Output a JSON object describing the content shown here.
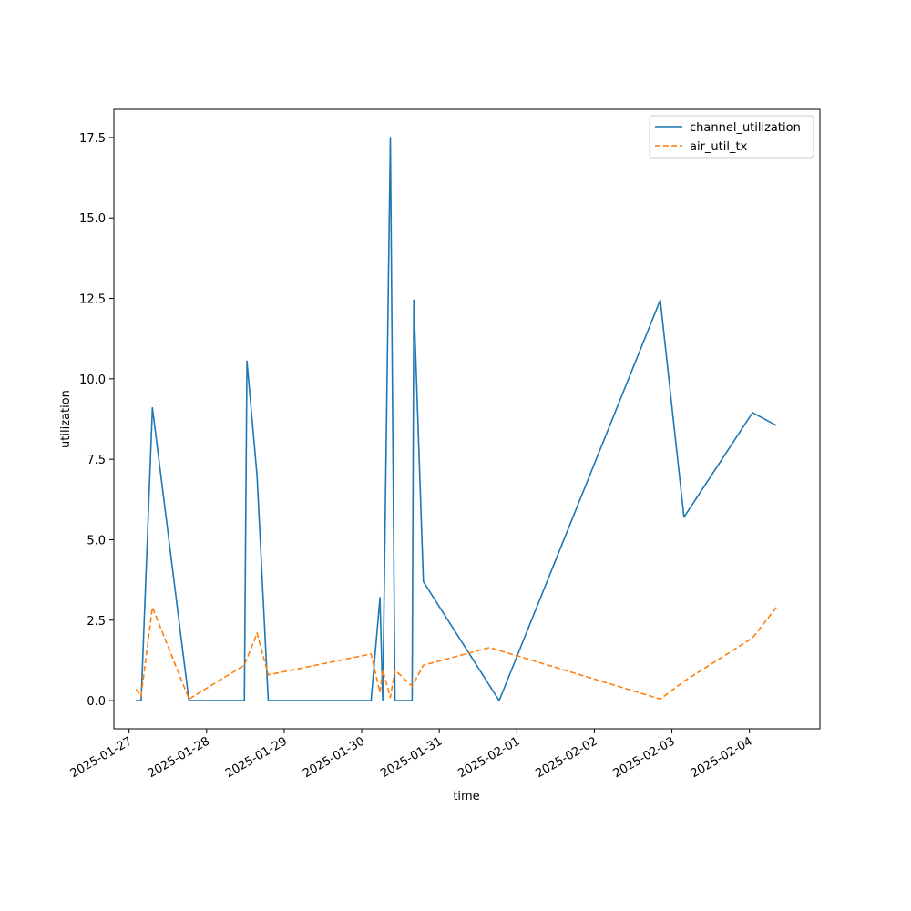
{
  "chart_data": {
    "type": "line",
    "title": "",
    "xlabel": "time",
    "ylabel": "utilization",
    "x_type": "datetime",
    "xlim": [
      "2025-01-26T19:18",
      "2025-02-04T21:48"
    ],
    "ylim": [
      -0.875,
      18.375
    ],
    "x_ticks": [
      "2025-01-27",
      "2025-01-28",
      "2025-01-29",
      "2025-01-30",
      "2025-01-31",
      "2025-02-01",
      "2025-02-02",
      "2025-02-03",
      "2025-02-04"
    ],
    "y_ticks": [
      "0.0",
      "2.5",
      "5.0",
      "7.5",
      "10.0",
      "12.5",
      "15.0",
      "17.5"
    ],
    "legend_position": "top-right",
    "grid": false,
    "series": [
      {
        "name": "channel_utilization",
        "color": "#1f77b4",
        "style": "solid",
        "points": [
          {
            "x": "2025-01-27T02:06",
            "y": 0.0
          },
          {
            "x": "2025-01-27T03:44",
            "y": 0.0
          },
          {
            "x": "2025-01-27T07:14",
            "y": 9.1
          },
          {
            "x": "2025-01-27T18:32",
            "y": 0.0
          },
          {
            "x": "2025-01-28T11:41",
            "y": 0.0
          },
          {
            "x": "2025-01-28T12:29",
            "y": 10.55
          },
          {
            "x": "2025-01-28T15:36",
            "y": 7.0
          },
          {
            "x": "2025-01-28T19:05",
            "y": 0.0
          },
          {
            "x": "2025-01-30T02:54",
            "y": 0.0
          },
          {
            "x": "2025-01-30T05:39",
            "y": 3.2
          },
          {
            "x": "2025-01-30T06:30",
            "y": 0.0
          },
          {
            "x": "2025-01-30T08:52",
            "y": 17.5
          },
          {
            "x": "2025-01-30T10:18",
            "y": 0.0
          },
          {
            "x": "2025-01-30T15:36",
            "y": 0.0
          },
          {
            "x": "2025-01-30T16:07",
            "y": 12.45
          },
          {
            "x": "2025-01-30T19:05",
            "y": 3.7
          },
          {
            "x": "2025-01-31T18:32",
            "y": 0.0
          },
          {
            "x": "2025-02-02T20:24",
            "y": 12.45
          },
          {
            "x": "2025-02-03T03:44",
            "y": 5.7
          },
          {
            "x": "2025-02-04T00:57",
            "y": 8.95
          },
          {
            "x": "2025-02-04T08:21",
            "y": 8.55
          }
        ]
      },
      {
        "name": "air_util_tx",
        "color": "#ff7f0e",
        "style": "dashed",
        "points": [
          {
            "x": "2025-01-27T02:06",
            "y": 0.35
          },
          {
            "x": "2025-01-27T03:44",
            "y": 0.15
          },
          {
            "x": "2025-01-27T07:14",
            "y": 2.9
          },
          {
            "x": "2025-01-27T18:32",
            "y": 0.05
          },
          {
            "x": "2025-01-28T11:41",
            "y": 1.1
          },
          {
            "x": "2025-01-28T15:36",
            "y": 2.1
          },
          {
            "x": "2025-01-28T19:05",
            "y": 0.8
          },
          {
            "x": "2025-01-30T02:54",
            "y": 1.45
          },
          {
            "x": "2025-01-30T05:39",
            "y": 0.25
          },
          {
            "x": "2025-01-30T06:30",
            "y": 0.95
          },
          {
            "x": "2025-01-30T08:52",
            "y": 0.1
          },
          {
            "x": "2025-01-30T10:18",
            "y": 0.95
          },
          {
            "x": "2025-01-30T15:36",
            "y": 0.45
          },
          {
            "x": "2025-01-30T19:05",
            "y": 1.1
          },
          {
            "x": "2025-01-31T15:36",
            "y": 1.65
          },
          {
            "x": "2025-02-02T20:24",
            "y": 0.05
          },
          {
            "x": "2025-02-03T03:44",
            "y": 0.6
          },
          {
            "x": "2025-02-04T00:57",
            "y": 1.95
          },
          {
            "x": "2025-02-04T08:21",
            "y": 2.9
          }
        ]
      }
    ]
  }
}
